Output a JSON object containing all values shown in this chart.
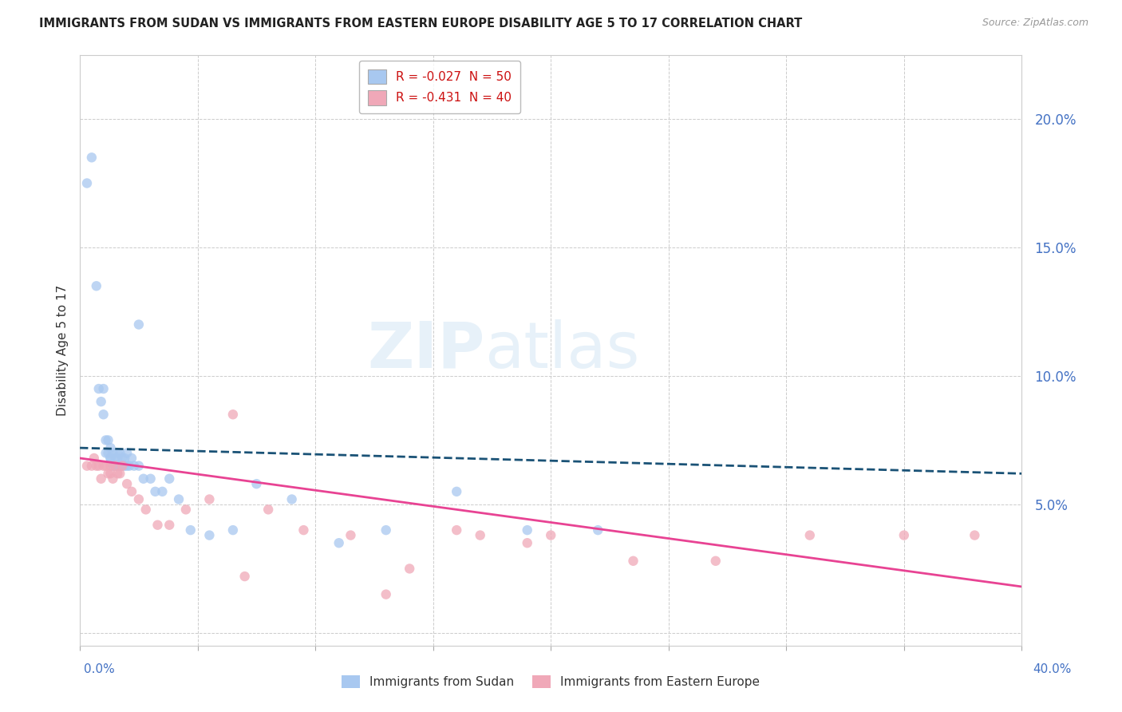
{
  "title": "IMMIGRANTS FROM SUDAN VS IMMIGRANTS FROM EASTERN EUROPE DISABILITY AGE 5 TO 17 CORRELATION CHART",
  "source_text": "Source: ZipAtlas.com",
  "ylabel": "Disability Age 5 to 17",
  "legend1_label": "R = -0.027  N = 50",
  "legend2_label": "R = -0.431  N = 40",
  "legend1_series": "Immigrants from Sudan",
  "legend2_series": "Immigrants from Eastern Europe",
  "sudan_color": "#a8c8f0",
  "eastern_color": "#f0a8b8",
  "sudan_line_color": "#1a5276",
  "eastern_line_color": "#e84393",
  "background_color": "#ffffff",
  "grid_color": "#cccccc",
  "xlim": [
    0.0,
    0.4
  ],
  "ylim": [
    -0.005,
    0.225
  ],
  "yticks": [
    0.0,
    0.05,
    0.1,
    0.15,
    0.2
  ],
  "ytick_labels": [
    "",
    "5.0%",
    "10.0%",
    "15.0%",
    "20.0%"
  ],
  "sudan_scatter_x": [
    0.003,
    0.005,
    0.007,
    0.008,
    0.009,
    0.01,
    0.01,
    0.011,
    0.011,
    0.012,
    0.012,
    0.013,
    0.013,
    0.013,
    0.014,
    0.014,
    0.015,
    0.015,
    0.016,
    0.016,
    0.016,
    0.017,
    0.017,
    0.018,
    0.018,
    0.019,
    0.019,
    0.02,
    0.02,
    0.021,
    0.022,
    0.023,
    0.025,
    0.027,
    0.03,
    0.032,
    0.035,
    0.038,
    0.042,
    0.047,
    0.055,
    0.065,
    0.075,
    0.09,
    0.11,
    0.13,
    0.16,
    0.19,
    0.22,
    0.025
  ],
  "sudan_scatter_y": [
    0.175,
    0.185,
    0.135,
    0.095,
    0.09,
    0.085,
    0.095,
    0.075,
    0.07,
    0.07,
    0.075,
    0.068,
    0.072,
    0.068,
    0.065,
    0.07,
    0.065,
    0.068,
    0.068,
    0.07,
    0.065,
    0.065,
    0.07,
    0.068,
    0.065,
    0.065,
    0.068,
    0.07,
    0.065,
    0.065,
    0.068,
    0.065,
    0.065,
    0.06,
    0.06,
    0.055,
    0.055,
    0.06,
    0.052,
    0.04,
    0.038,
    0.04,
    0.058,
    0.052,
    0.035,
    0.04,
    0.055,
    0.04,
    0.04,
    0.12
  ],
  "eastern_scatter_x": [
    0.003,
    0.005,
    0.006,
    0.007,
    0.008,
    0.009,
    0.01,
    0.011,
    0.012,
    0.013,
    0.013,
    0.014,
    0.015,
    0.016,
    0.017,
    0.018,
    0.02,
    0.022,
    0.025,
    0.028,
    0.033,
    0.038,
    0.045,
    0.055,
    0.065,
    0.08,
    0.095,
    0.115,
    0.14,
    0.17,
    0.2,
    0.235,
    0.27,
    0.31,
    0.35,
    0.38,
    0.19,
    0.16,
    0.13,
    0.07
  ],
  "eastern_scatter_y": [
    0.065,
    0.065,
    0.068,
    0.065,
    0.065,
    0.06,
    0.065,
    0.065,
    0.062,
    0.065,
    0.062,
    0.06,
    0.065,
    0.062,
    0.062,
    0.065,
    0.058,
    0.055,
    0.052,
    0.048,
    0.042,
    0.042,
    0.048,
    0.052,
    0.085,
    0.048,
    0.04,
    0.038,
    0.025,
    0.038,
    0.038,
    0.028,
    0.028,
    0.038,
    0.038,
    0.038,
    0.035,
    0.04,
    0.015,
    0.022
  ],
  "sudan_line_x": [
    0.0,
    0.4
  ],
  "sudan_line_y": [
    0.072,
    0.062
  ],
  "eastern_line_x": [
    0.0,
    0.4
  ],
  "eastern_line_y": [
    0.068,
    0.018
  ]
}
